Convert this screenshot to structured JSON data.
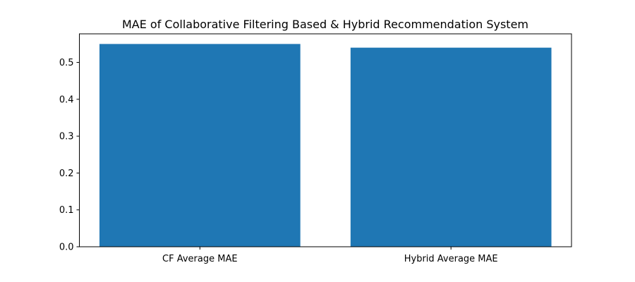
{
  "chart_data": {
    "type": "bar",
    "title": "MAE of Collaborative Filtering Based & Hybrid Recommendation System",
    "xlabel": "",
    "ylabel": "",
    "categories": [
      "CF Average MAE",
      "Hybrid Average MAE"
    ],
    "values": [
      0.55,
      0.54
    ],
    "ylim": [
      0,
      0.5775
    ],
    "yticks": [
      0.0,
      0.1,
      0.2,
      0.3,
      0.4,
      0.5
    ],
    "ytick_labels": [
      "0.0",
      "0.1",
      "0.2",
      "0.3",
      "0.4",
      "0.5"
    ],
    "grid": false,
    "legend": "none",
    "bar_color": "#1f77b4"
  }
}
